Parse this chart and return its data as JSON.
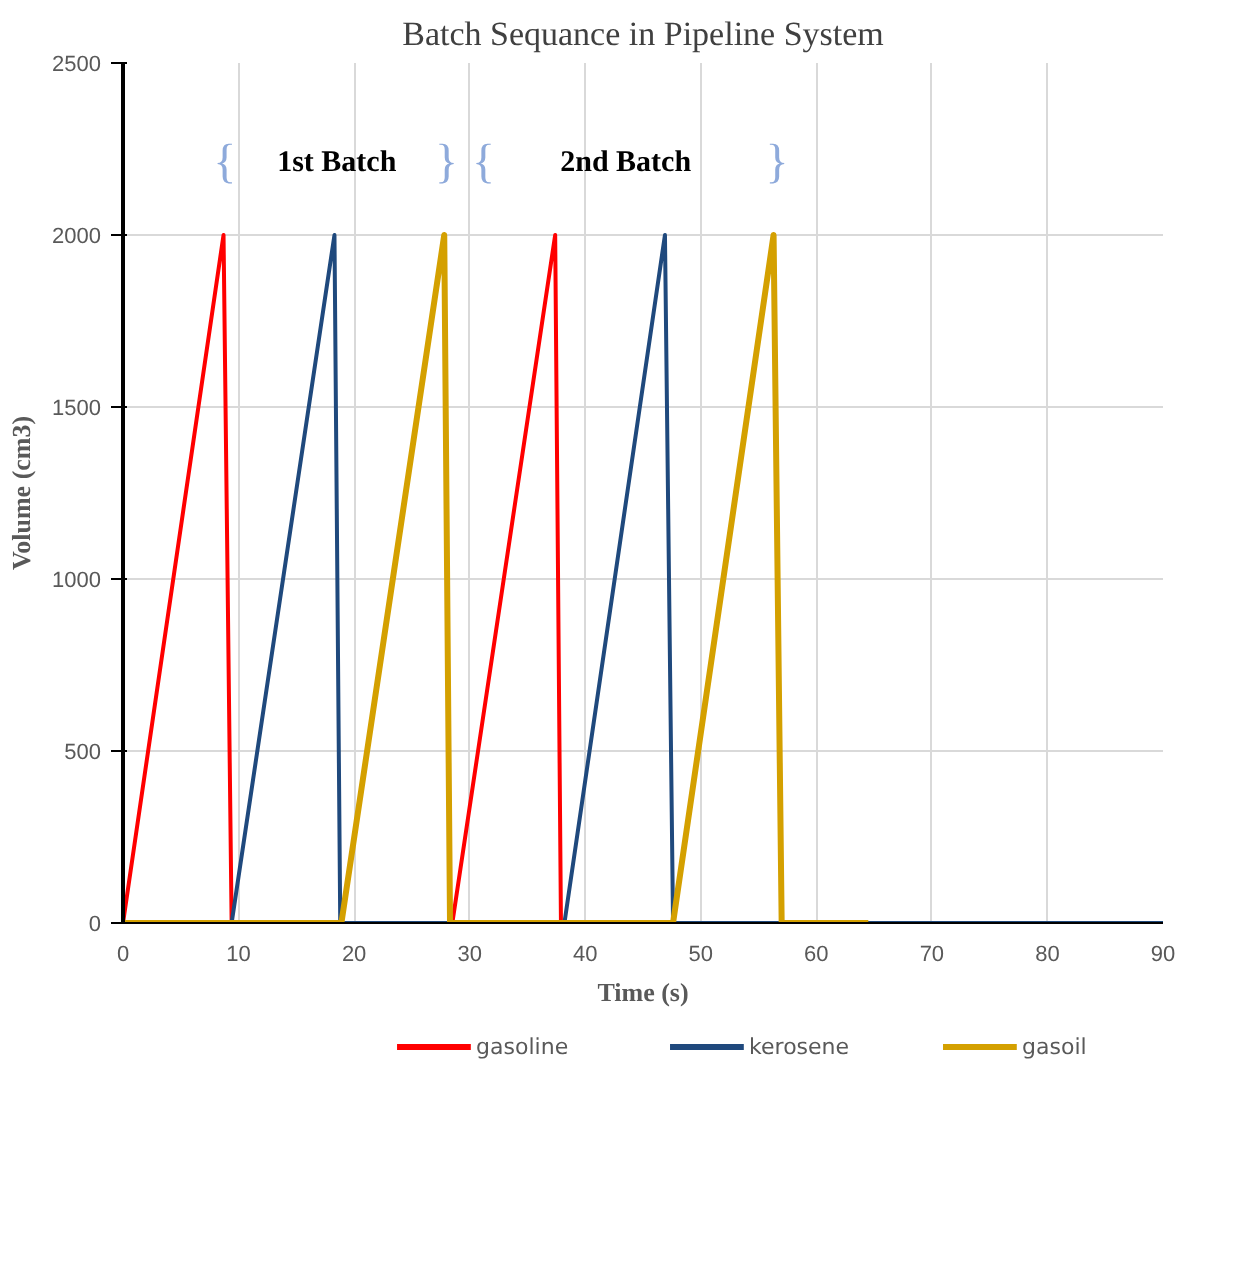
{
  "chart_data": {
    "type": "line",
    "title": "Batch Sequance in Pipeline System",
    "xlabel": "Time (s)",
    "ylabel": "Volume (cm3)",
    "xlim": [
      0,
      90
    ],
    "ylim": [
      0,
      2500
    ],
    "xticks": [
      0,
      10,
      20,
      30,
      40,
      50,
      60,
      70,
      80,
      90
    ],
    "yticks": [
      0,
      500,
      1000,
      1500,
      2000,
      2500
    ],
    "grid": true,
    "legend": "bottom",
    "marker": "none",
    "line_style": "solid",
    "series": [
      {
        "name": "gasoline",
        "color": "#ff0000",
        "x": [
          0,
          8.7,
          9.4,
          28.5,
          37.4,
          37.9,
          64.5
        ],
        "values": [
          0,
          2000,
          0,
          0,
          2000,
          0,
          0
        ]
      },
      {
        "name": "kerosene",
        "color": "#1f497d",
        "x": [
          0,
          9.4,
          18.3,
          18.8,
          38.2,
          46.9,
          47.6,
          90
        ],
        "values": [
          0,
          0,
          2000,
          0,
          0,
          2000,
          0,
          0
        ]
      },
      {
        "name": "gasoil",
        "color": "#d4a000",
        "x": [
          0,
          18.9,
          27.8,
          28.3,
          47.6,
          56.3,
          57.0,
          64.5
        ],
        "values": [
          0,
          0,
          2000,
          0,
          0,
          2000,
          0,
          0
        ]
      }
    ],
    "annotations": [
      "{",
      "1st Batch",
      "}",
      "{",
      "2nd Batch",
      "}"
    ]
  }
}
